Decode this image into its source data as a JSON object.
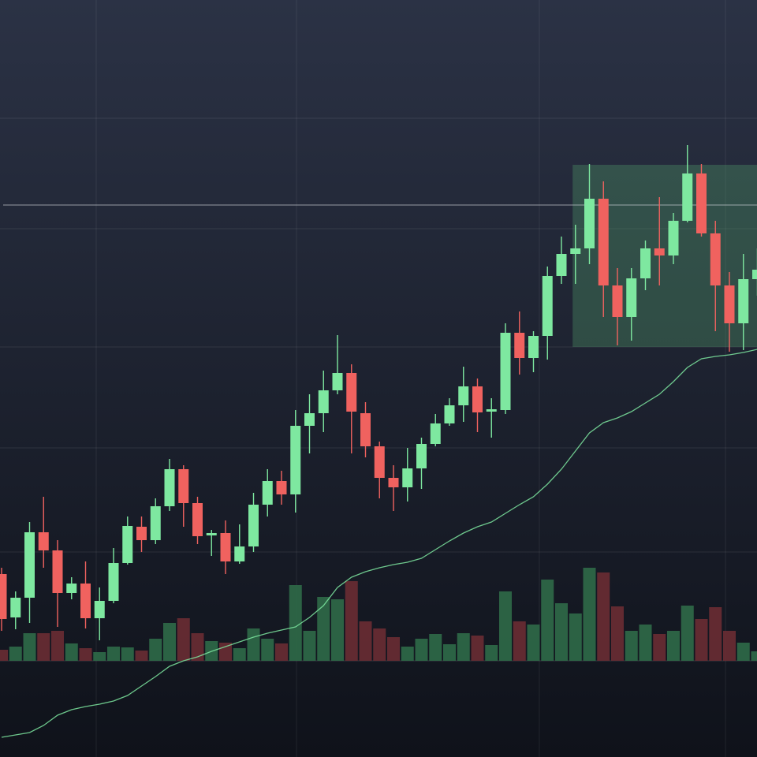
{
  "chart_data": {
    "type": "candlestick",
    "categories": [
      null,
      null,
      null,
      null,
      null,
      null,
      null,
      null,
      null,
      null,
      null,
      null,
      null,
      null,
      null,
      null,
      null,
      null,
      null,
      null,
      null,
      null,
      null,
      null,
      null,
      null,
      null,
      null,
      null,
      null,
      null,
      null,
      null,
      null,
      null,
      null,
      null,
      null,
      null,
      null,
      null,
      null,
      null,
      null,
      null,
      null,
      null,
      null,
      null,
      null,
      null,
      null,
      null,
      null,
      null
    ],
    "open": [
      232,
      177,
      202,
      285,
      262,
      208,
      220,
      176,
      198,
      246,
      292,
      275,
      318,
      365,
      322,
      282,
      284,
      248,
      267,
      320,
      350,
      333,
      420,
      436,
      465,
      487,
      436,
      394,
      354,
      342,
      366,
      397,
      423,
      446,
      470,
      438,
      440,
      538,
      506,
      534,
      610,
      638,
      645,
      708,
      598,
      558,
      607,
      645,
      636,
      680,
      740,
      664,
      598,
      550,
      606
    ],
    "close": [
      175,
      202,
      285,
      262,
      208,
      220,
      176,
      198,
      246,
      293,
      275,
      318,
      365,
      322,
      280,
      284,
      248,
      267,
      320,
      350,
      333,
      420,
      436,
      465,
      487,
      438,
      394,
      354,
      342,
      366,
      397,
      423,
      446,
      470,
      437,
      441,
      538,
      506,
      534,
      610,
      638,
      645,
      708,
      598,
      558,
      607,
      645,
      636,
      680,
      740,
      664,
      598,
      550,
      606,
      618
    ],
    "high": [
      240,
      210,
      298,
      330,
      275,
      228,
      248,
      215,
      265,
      305,
      305,
      328,
      378,
      370,
      330,
      288,
      300,
      295,
      335,
      365,
      363,
      440,
      460,
      490,
      535,
      498,
      450,
      400,
      370,
      392,
      405,
      435,
      455,
      495,
      480,
      455,
      550,
      565,
      540,
      622,
      660,
      675,
      752,
      730,
      620,
      620,
      655,
      710,
      690,
      776,
      752,
      680,
      615,
      638,
      645
    ],
    "low": [
      160,
      162,
      170,
      240,
      165,
      200,
      163,
      148,
      195,
      244,
      260,
      270,
      312,
      292,
      270,
      255,
      232,
      245,
      260,
      305,
      320,
      310,
      385,
      412,
      460,
      385,
      380,
      328,
      312,
      324,
      340,
      394,
      420,
      425,
      412,
      405,
      435,
      485,
      488,
      504,
      600,
      600,
      625,
      558,
      522,
      528,
      592,
      598,
      625,
      678,
      660,
      540,
      514,
      516,
      585
    ],
    "volume": [
      14,
      18,
      35,
      35,
      38,
      22,
      16,
      11,
      18,
      17,
      13,
      28,
      48,
      54,
      35,
      25,
      23,
      16,
      41,
      28,
      22,
      96,
      38,
      81,
      78,
      101,
      50,
      41,
      30,
      18,
      28,
      34,
      21,
      35,
      32,
      20,
      88,
      50,
      46,
      103,
      73,
      60,
      118,
      112,
      69,
      38,
      46,
      34,
      38,
      70,
      53,
      68,
      38,
      23,
      12
    ],
    "ma": [
      25,
      28,
      31,
      40,
      53,
      60,
      64,
      67,
      71,
      78,
      90,
      102,
      115,
      122,
      127,
      134,
      140,
      146,
      152,
      157,
      161,
      165,
      177,
      192,
      215,
      228,
      235,
      240,
      244,
      247,
      252,
      263,
      274,
      284,
      292,
      298,
      309,
      320,
      330,
      346,
      365,
      388,
      411,
      424,
      430,
      438,
      449,
      460,
      476,
      494,
      505,
      508,
      510,
      513,
      517
    ],
    "ylim": [
      0,
      960
    ],
    "yticks": [
      260,
      392,
      520,
      670,
      810
    ],
    "y2lim": [
      0,
      838
    ],
    "xticks": [
      6.76,
      21.07,
      38.42,
      51.72
    ],
    "hline": 700,
    "highlight": {
      "x": [
        40.8,
        54.9
      ],
      "y": [
        520,
        751
      ]
    },
    "up_color": "#7ee8a0",
    "down_color": "#f0625f",
    "volume_up_color": "#2f6a48",
    "volume_down_color": "#6a2c33",
    "ma_color": "#7ee8a0",
    "grid": true
  }
}
